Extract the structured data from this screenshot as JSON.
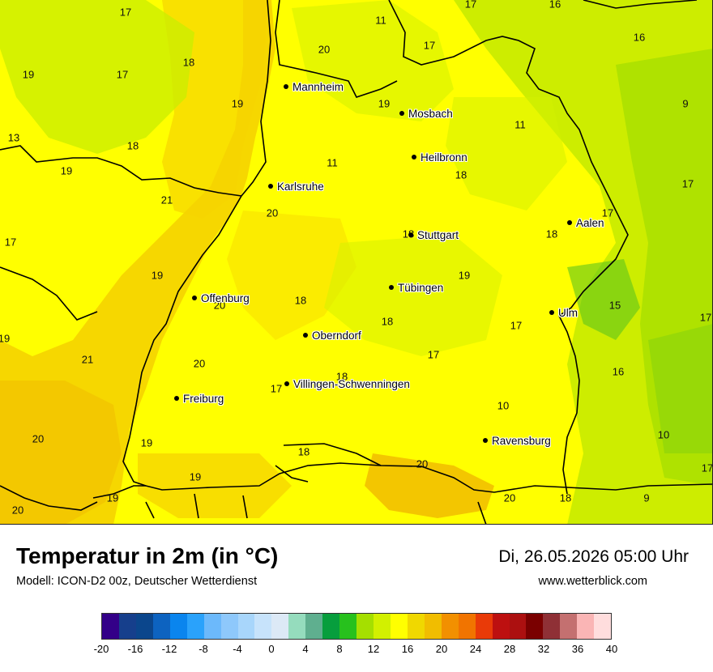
{
  "header": {
    "title": "Temperatur in 2m (in °C)",
    "model": "Modell: ICON-D2 00z, Deutscher Wetterdienst",
    "datetime": "Di, 26.05.2026 05:00 Uhr",
    "website": "www.wetterblick.com"
  },
  "cities": [
    {
      "name": "Mannheim"
    },
    {
      "name": "Mosbach"
    },
    {
      "name": "Heilbronn"
    },
    {
      "name": "Karlsruhe"
    },
    {
      "name": "Stuttgart"
    },
    {
      "name": "Aalen"
    },
    {
      "name": "Tübingen"
    },
    {
      "name": "Offenburg"
    },
    {
      "name": "Ulm"
    },
    {
      "name": "Oberndorf"
    },
    {
      "name": "Villingen-Schwenningen"
    },
    {
      "name": "Freiburg"
    },
    {
      "name": "Ravensburg"
    }
  ],
  "temperature_labels": [
    "17",
    "11",
    "17",
    "16",
    "19",
    "18",
    "17",
    "20",
    "17",
    "16",
    "19",
    "9",
    "19",
    "13",
    "18",
    "11",
    "11",
    "19",
    "18",
    "21",
    "18",
    "17",
    "17",
    "17",
    "20",
    "18",
    "19",
    "19",
    "20",
    "19",
    "20",
    "18",
    "15",
    "17",
    "17",
    "21",
    "18",
    "20",
    "17",
    "16",
    "17",
    "18",
    "10",
    "20",
    "19",
    "18",
    "10",
    "17",
    "20",
    "19",
    "19",
    "20",
    "9",
    "19",
    "18"
  ],
  "legend": {
    "colors": [
      "#330088",
      "#163f8c",
      "#0b468c",
      "#0d63c0",
      "#0a85ee",
      "#2aa2fb",
      "#6cb9fb",
      "#8ec8fb",
      "#a8d6fb",
      "#c7e3fb",
      "#dce9f6",
      "#95dcbd",
      "#5faf8f",
      "#079e3d",
      "#27c11d",
      "#a5df00",
      "#d2f000",
      "#ffff00",
      "#f0d800",
      "#f1bd00",
      "#f29000",
      "#f17400",
      "#e93a08",
      "#bd1010",
      "#ac1010",
      "#7a0000",
      "#8f3036",
      "#c47070",
      "#fab5b5",
      "#ffdddd"
    ],
    "ticks": [
      "-20",
      "-16",
      "-12",
      "-8",
      "-4",
      "0",
      "4",
      "8",
      "12",
      "16",
      "20",
      "24",
      "28",
      "32",
      "36",
      "40"
    ]
  }
}
